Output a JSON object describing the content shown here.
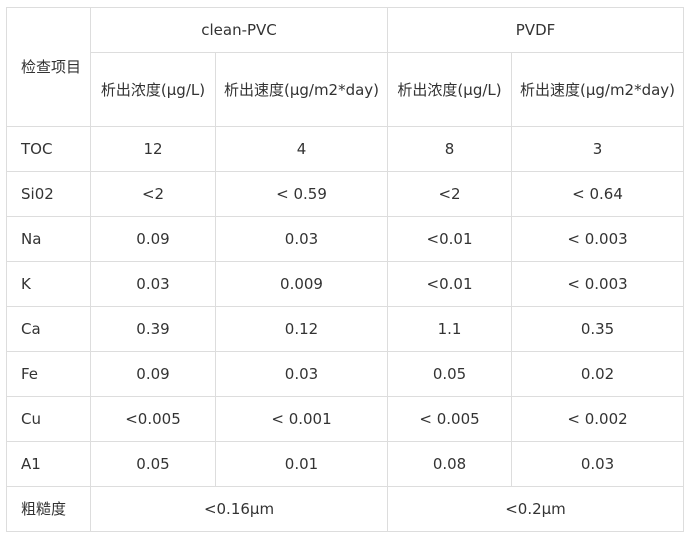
{
  "table": {
    "corner_header": "检查项目",
    "groups": [
      "clean-PVC",
      "PVDF"
    ],
    "sub_headers": [
      "析出浓度(μg/L)",
      "析出速度(μg/m2*day)",
      "析出浓度(μg/L)",
      "析出速度(μg/m2*day)"
    ],
    "rows": [
      {
        "item": "TOC",
        "values": [
          "12",
          "4",
          "8",
          "3"
        ]
      },
      {
        "item": "Si02",
        "values": [
          "<2",
          "< 0.59",
          "<2",
          "< 0.64"
        ]
      },
      {
        "item": "Na",
        "values": [
          "0.09",
          "0.03",
          "<0.01",
          "< 0.003"
        ]
      },
      {
        "item": "K",
        "values": [
          "0.03",
          "0.009",
          "<0.01",
          "< 0.003"
        ]
      },
      {
        "item": "Ca",
        "values": [
          "0.39",
          "0.12",
          "1.1",
          "0.35"
        ]
      },
      {
        "item": "Fe",
        "values": [
          "0.09",
          "0.03",
          "0.05",
          "0.02"
        ]
      },
      {
        "item": "Cu",
        "values": [
          "<0.005",
          "< 0.001",
          "< 0.005",
          "< 0.002"
        ]
      },
      {
        "item": "A1",
        "values": [
          "0.05",
          "0.01",
          "0.08",
          "0.03"
        ]
      }
    ],
    "roughness": {
      "item": "粗糙度",
      "values": [
        "<0.16μm",
        "<0.2μm"
      ]
    }
  }
}
